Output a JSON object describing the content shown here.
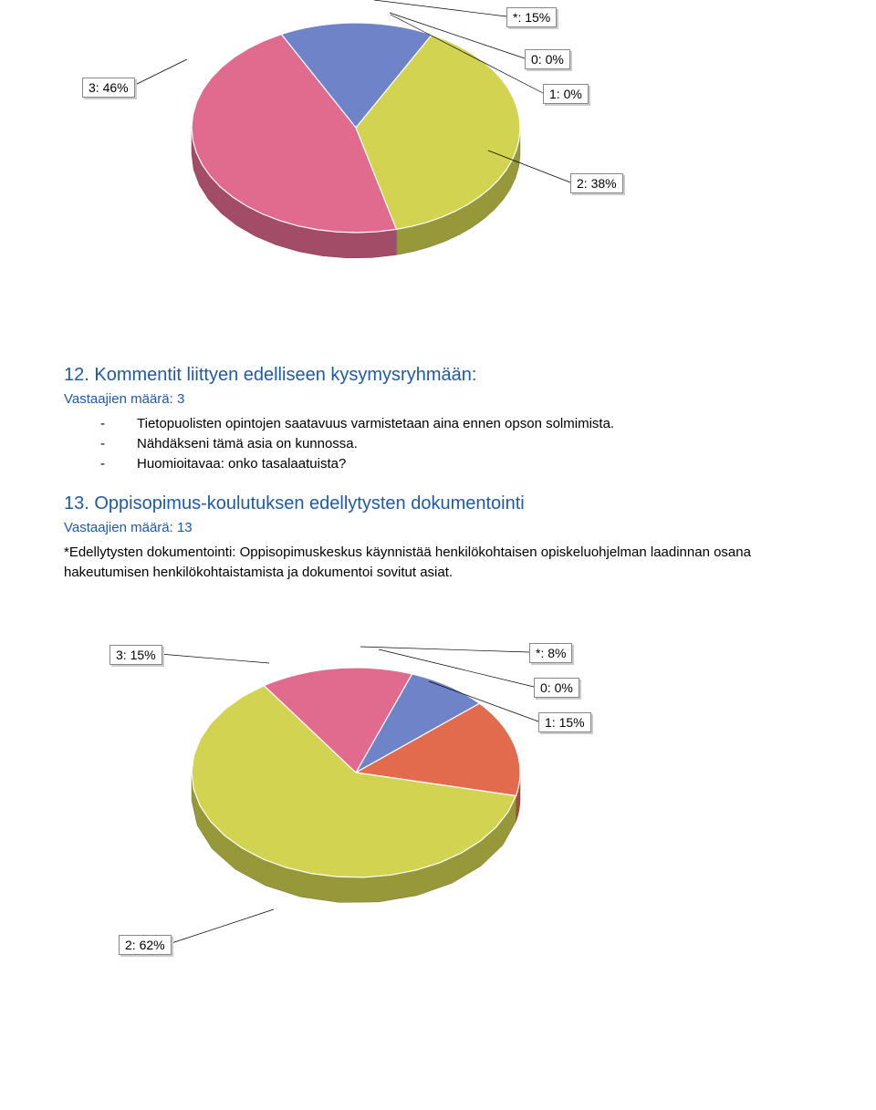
{
  "chart1": {
    "type": "pie",
    "slices": [
      {
        "name": "*",
        "label": "*: 15%",
        "value": 15,
        "color": "#6f84c8"
      },
      {
        "name": "0",
        "label": "0: 0%",
        "value": 0,
        "color": "#e08060"
      },
      {
        "name": "1",
        "label": "1: 0%",
        "value": 0,
        "color": "#e08060"
      },
      {
        "name": "2",
        "label": "2: 38%",
        "value": 38,
        "color": "#d2d351"
      },
      {
        "name": "3",
        "label": "3: 46%",
        "value": 46,
        "color": "#e16a8f"
      }
    ],
    "side_color_offset": "#00000030",
    "background": "#ffffff"
  },
  "section12": {
    "title": "12. Kommentit liittyen edelliseen kysymysryhmään:",
    "sub": "Vastaajien määrä: 3",
    "bullets": [
      "Tietopuolisten opintojen saatavuus varmistetaan aina ennen opson solmimista.",
      "Nähdäkseni tämä asia on kunnossa.",
      "Huomioitavaa: onko tasalaatuista?"
    ]
  },
  "section13": {
    "title": "13. Oppisopimus-koulutuksen edellytysten dokumentointi",
    "sub": "Vastaajien määrä: 13",
    "body": "*Edellytysten dokumentointi: Oppisopimuskeskus käynnistää henkilökohtaisen opiskeluohjelman laadinnan osana hakeutumisen henkilökohtaistamista ja dokumentoi sovitut asiat."
  },
  "chart2": {
    "type": "pie",
    "slices": [
      {
        "name": "*",
        "label": "*: 8%",
        "value": 8,
        "color": "#6f84c8"
      },
      {
        "name": "0",
        "label": "0: 0%",
        "value": 0,
        "color": "#e08060"
      },
      {
        "name": "1",
        "label": "1: 15%",
        "value": 15,
        "color": "#e26b4e"
      },
      {
        "name": "2",
        "label": "2: 62%",
        "value": 62,
        "color": "#d2d351"
      },
      {
        "name": "3",
        "label": "3: 15%",
        "value": 15,
        "color": "#e16a8f"
      }
    ],
    "side_color_offset": "#00000030",
    "background": "#ffffff"
  }
}
